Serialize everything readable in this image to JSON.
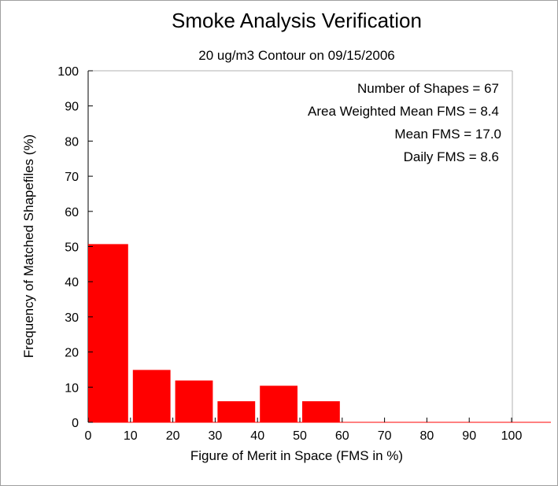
{
  "chart_data": {
    "type": "bar",
    "title": "Smoke Analysis Verification",
    "subtitle": "20 ug/m3 Contour on 09/15/2006",
    "xlabel": "Figure of Merit in Space (FMS in %)",
    "ylabel": "Frequency of Matched Shapefiles (%)",
    "xlim": [
      0,
      110
    ],
    "ylim": [
      0,
      100
    ],
    "x_ticks": [
      "0",
      "10",
      "20",
      "30",
      "40",
      "50",
      "60",
      "70",
      "80",
      "90",
      "100"
    ],
    "y_ticks": [
      "0",
      "10",
      "20",
      "30",
      "40",
      "50",
      "60",
      "70",
      "80",
      "90",
      "100"
    ],
    "bin_width": 10,
    "bins": [
      0,
      10,
      20,
      30,
      40,
      50,
      60,
      70,
      80,
      90,
      100
    ],
    "values": [
      50.7,
      14.9,
      11.9,
      6.0,
      10.4,
      6.0,
      0,
      0,
      0,
      0,
      0
    ],
    "bar_color": "#ff0000",
    "grid": false,
    "annotations": [
      "Number of Shapes = 67",
      "Area Weighted Mean FMS = 8.4",
      "Mean FMS = 17.0",
      "Daily FMS = 8.6"
    ]
  }
}
